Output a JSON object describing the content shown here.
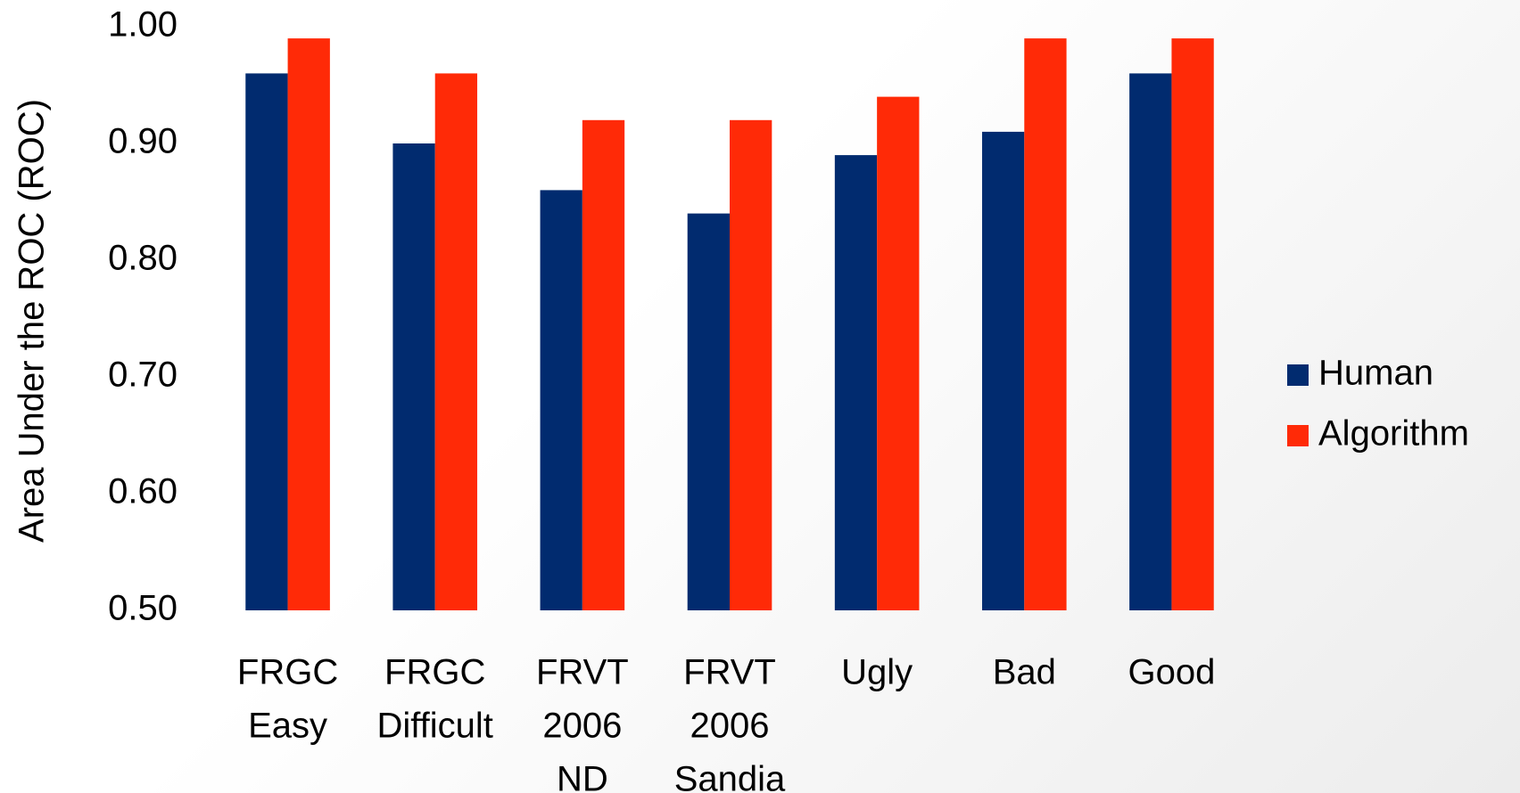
{
  "chart_data": {
    "type": "bar",
    "y_label": "Area Under the ROC (ROC)",
    "categories": [
      [
        "FRGC",
        "Easy"
      ],
      [
        "FRGC",
        "Difficult"
      ],
      [
        "FRVT",
        "2006",
        "ND"
      ],
      [
        "FRVT",
        "2006",
        "Sandia"
      ],
      [
        "Ugly"
      ],
      [
        "Bad"
      ],
      [
        "Good"
      ]
    ],
    "series": [
      {
        "name": "Human",
        "color": "#012b6f",
        "values": [
          0.96,
          0.9,
          0.86,
          0.84,
          0.89,
          0.91,
          0.96
        ]
      },
      {
        "name": "Algorithm",
        "color": "#ff2a07",
        "values": [
          0.99,
          0.96,
          0.92,
          0.92,
          0.94,
          0.99,
          0.99
        ]
      }
    ],
    "ylim": [
      0.5,
      1.0
    ],
    "yticks": [
      {
        "value": 0.5,
        "label": "0.50"
      },
      {
        "value": 0.6,
        "label": "0.60"
      },
      {
        "value": 0.7,
        "label": "0.70"
      },
      {
        "value": 0.8,
        "label": "0.80"
      },
      {
        "value": 0.9,
        "label": "0.90"
      },
      {
        "value": 1.0,
        "label": "1.00"
      }
    ],
    "grid": false,
    "legend": "right"
  }
}
